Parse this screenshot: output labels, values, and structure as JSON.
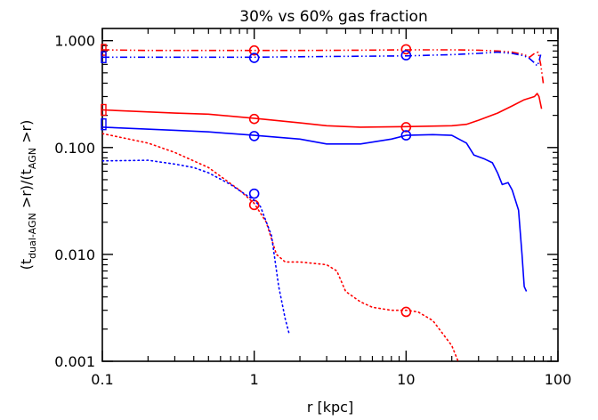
{
  "chart_data": {
    "type": "line",
    "title": "30% vs 60% gas fraction",
    "xlabel": "r [kpc]",
    "ylabel": {
      "t_open": "(t",
      "sub1": "dual-AGN",
      "mid": " >r)/(t",
      "sub2": "AGN",
      "t_close": " >r)"
    },
    "x_scale": "log",
    "y_scale": "log",
    "xlim": [
      0.1,
      100
    ],
    "ylim": [
      0.001,
      1.3
    ],
    "grid": false,
    "x_ticks": [
      {
        "value": 0.1,
        "label": "0.1"
      },
      {
        "value": 1,
        "label": "1"
      },
      {
        "value": 10,
        "label": "10"
      },
      {
        "value": 100,
        "label": "100"
      }
    ],
    "y_ticks": [
      {
        "value": 0.001,
        "label": "0.001"
      },
      {
        "value": 0.01,
        "label": "0.010"
      },
      {
        "value": 0.1,
        "label": "0.100"
      },
      {
        "value": 1,
        "label": "1.000"
      }
    ],
    "series": [
      {
        "color": "#ff0000",
        "dash": "dashdotdot",
        "points": [
          [
            0.1,
            0.82
          ],
          [
            0.2,
            0.81
          ],
          [
            0.5,
            0.81
          ],
          [
            1,
            0.81
          ],
          [
            2,
            0.81
          ],
          [
            5,
            0.815
          ],
          [
            10,
            0.82
          ],
          [
            20,
            0.82
          ],
          [
            30,
            0.815
          ],
          [
            40,
            0.8
          ],
          [
            50,
            0.78
          ],
          [
            60,
            0.74
          ],
          [
            65,
            0.7
          ],
          [
            70,
            0.76
          ],
          [
            74,
            0.78
          ],
          [
            77,
            0.6
          ],
          [
            80,
            0.4
          ]
        ],
        "markers": [
          [
            1,
            0.81
          ],
          [
            10,
            0.83
          ]
        ],
        "edge_marker": 0.82
      },
      {
        "color": "#0000ff",
        "dash": "dashdotdot",
        "points": [
          [
            0.1,
            0.7
          ],
          [
            0.3,
            0.7
          ],
          [
            1,
            0.7
          ],
          [
            3,
            0.71
          ],
          [
            10,
            0.72
          ],
          [
            20,
            0.74
          ],
          [
            30,
            0.76
          ],
          [
            40,
            0.78
          ],
          [
            50,
            0.76
          ],
          [
            60,
            0.72
          ],
          [
            65,
            0.68
          ],
          [
            70,
            0.62
          ],
          [
            73,
            0.58
          ],
          [
            75,
            0.64
          ],
          [
            77,
            0.74
          ]
        ],
        "markers": [
          [
            1,
            0.69
          ],
          [
            10,
            0.73
          ]
        ],
        "edge_marker": 0.7
      },
      {
        "color": "#ff0000",
        "dash": "solid",
        "points": [
          [
            0.1,
            0.225
          ],
          [
            0.3,
            0.21
          ],
          [
            0.5,
            0.205
          ],
          [
            1,
            0.188
          ],
          [
            2,
            0.17
          ],
          [
            3,
            0.16
          ],
          [
            5,
            0.155
          ],
          [
            10,
            0.157
          ],
          [
            20,
            0.16
          ],
          [
            25,
            0.165
          ],
          [
            30,
            0.18
          ],
          [
            40,
            0.21
          ],
          [
            50,
            0.245
          ],
          [
            60,
            0.28
          ],
          [
            70,
            0.3
          ],
          [
            73,
            0.32
          ],
          [
            75,
            0.3
          ],
          [
            78,
            0.23
          ]
        ],
        "markers": [
          [
            1,
            0.185
          ],
          [
            10,
            0.155
          ]
        ],
        "edge_marker": 0.225
      },
      {
        "color": "#0000ff",
        "dash": "solid",
        "points": [
          [
            0.1,
            0.155
          ],
          [
            0.3,
            0.145
          ],
          [
            0.5,
            0.14
          ],
          [
            1,
            0.13
          ],
          [
            2,
            0.12
          ],
          [
            3,
            0.108
          ],
          [
            5,
            0.108
          ],
          [
            8,
            0.12
          ],
          [
            10,
            0.13
          ],
          [
            15,
            0.132
          ],
          [
            20,
            0.13
          ],
          [
            25,
            0.11
          ],
          [
            28,
            0.085
          ],
          [
            33,
            0.078
          ],
          [
            37,
            0.072
          ],
          [
            40,
            0.058
          ],
          [
            43,
            0.045
          ],
          [
            47,
            0.047
          ],
          [
            50,
            0.04
          ],
          [
            55,
            0.026
          ],
          [
            58,
            0.01
          ],
          [
            60,
            0.005
          ],
          [
            62,
            0.0045
          ]
        ],
        "markers": [
          [
            1,
            0.128
          ],
          [
            10,
            0.13
          ]
        ],
        "edge_marker": 0.165
      },
      {
        "color": "#ff0000",
        "dash": "dotted",
        "points": [
          [
            0.1,
            0.135
          ],
          [
            0.2,
            0.11
          ],
          [
            0.3,
            0.09
          ],
          [
            0.5,
            0.065
          ],
          [
            0.8,
            0.04
          ],
          [
            1,
            0.03
          ],
          [
            1.2,
            0.02
          ],
          [
            1.4,
            0.01
          ],
          [
            1.6,
            0.0085
          ],
          [
            2,
            0.0085
          ],
          [
            3,
            0.008
          ],
          [
            3.5,
            0.007
          ],
          [
            4,
            0.0045
          ],
          [
            5,
            0.0036
          ],
          [
            6,
            0.0032
          ],
          [
            8,
            0.003
          ],
          [
            10,
            0.003
          ],
          [
            12,
            0.0029
          ],
          [
            15,
            0.0024
          ],
          [
            20,
            0.0014
          ],
          [
            22,
            0.001
          ]
        ],
        "markers": [
          [
            1,
            0.029
          ],
          [
            10,
            0.0029
          ]
        ]
      },
      {
        "color": "#0000ff",
        "dash": "dotted",
        "points": [
          [
            0.1,
            0.075
          ],
          [
            0.2,
            0.076
          ],
          [
            0.3,
            0.07
          ],
          [
            0.4,
            0.065
          ],
          [
            0.5,
            0.058
          ],
          [
            0.7,
            0.045
          ],
          [
            1,
            0.032
          ],
          [
            1.1,
            0.028
          ],
          [
            1.3,
            0.015
          ],
          [
            1.45,
            0.005
          ],
          [
            1.6,
            0.0025
          ],
          [
            1.7,
            0.0018
          ]
        ],
        "markers": [
          [
            1,
            0.037
          ]
        ]
      }
    ]
  }
}
